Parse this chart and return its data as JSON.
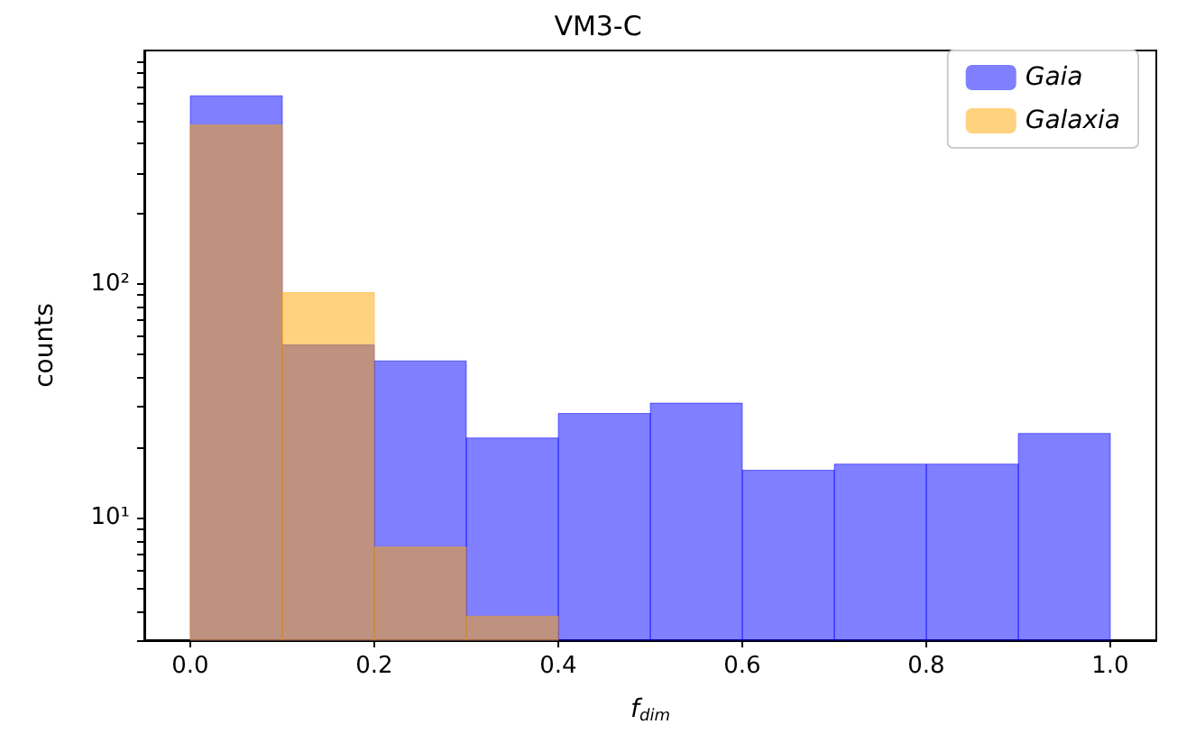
{
  "chart_data": {
    "type": "histogram",
    "title": "VM3-C",
    "xlabel": "f$_{dim}$",
    "ylabel": "counts",
    "bins": [
      0,
      0.1,
      0.2,
      0.3,
      0.4,
      0.5,
      0.6,
      0.7,
      0.8,
      0.9,
      1.0
    ],
    "series": [
      {
        "name": "Gaia",
        "color": "#0000ff",
        "values": [
          640,
          55,
          47,
          22,
          28,
          31,
          16,
          17,
          17,
          23
        ]
      },
      {
        "name": "Galaxia",
        "color": "#ffa500",
        "values": [
          480,
          92,
          7.5,
          3.8,
          null,
          null,
          null,
          null,
          null,
          null
        ]
      }
    ],
    "log": "y",
    "xlim": [
      -0.05,
      1.05
    ],
    "xticks": [
      {
        "value": 0,
        "label": "0.0"
      },
      {
        "value": 0.2,
        "label": "0.2"
      },
      {
        "value": 0.4,
        "label": "0.4"
      },
      {
        "value": 0.6,
        "label": "0.6"
      },
      {
        "value": 0.8,
        "label": "0.8"
      },
      {
        "value": 1.0,
        "label": "1.0"
      }
    ],
    "ylim": [
      3,
      1000
    ],
    "yticks": [
      {
        "value": 3,
        "label": null
      },
      {
        "value": 4,
        "label": null
      },
      {
        "value": 5,
        "label": null
      },
      {
        "value": 6,
        "label": null
      },
      {
        "value": 7,
        "label": null
      },
      {
        "value": 8,
        "label": null
      },
      {
        "value": 9,
        "label": null
      },
      {
        "value": 10,
        "label": "10¹"
      },
      {
        "value": 20,
        "label": null
      },
      {
        "value": 30,
        "label": null
      },
      {
        "value": 40,
        "label": null
      },
      {
        "value": 50,
        "label": null
      },
      {
        "value": 60,
        "label": null
      },
      {
        "value": 70,
        "label": null
      },
      {
        "value": 80,
        "label": null
      },
      {
        "value": 90,
        "label": null
      },
      {
        "value": 100,
        "label": "10²"
      },
      {
        "value": 200,
        "label": null
      },
      {
        "value": 300,
        "label": null
      },
      {
        "value": 400,
        "label": null
      },
      {
        "value": 500,
        "label": null
      },
      {
        "value": 600,
        "label": null
      },
      {
        "value": 700,
        "label": null
      },
      {
        "value": 800,
        "label": null
      },
      {
        "value": 900,
        "label": null
      }
    ],
    "legend": "top right",
    "grid": false
  }
}
